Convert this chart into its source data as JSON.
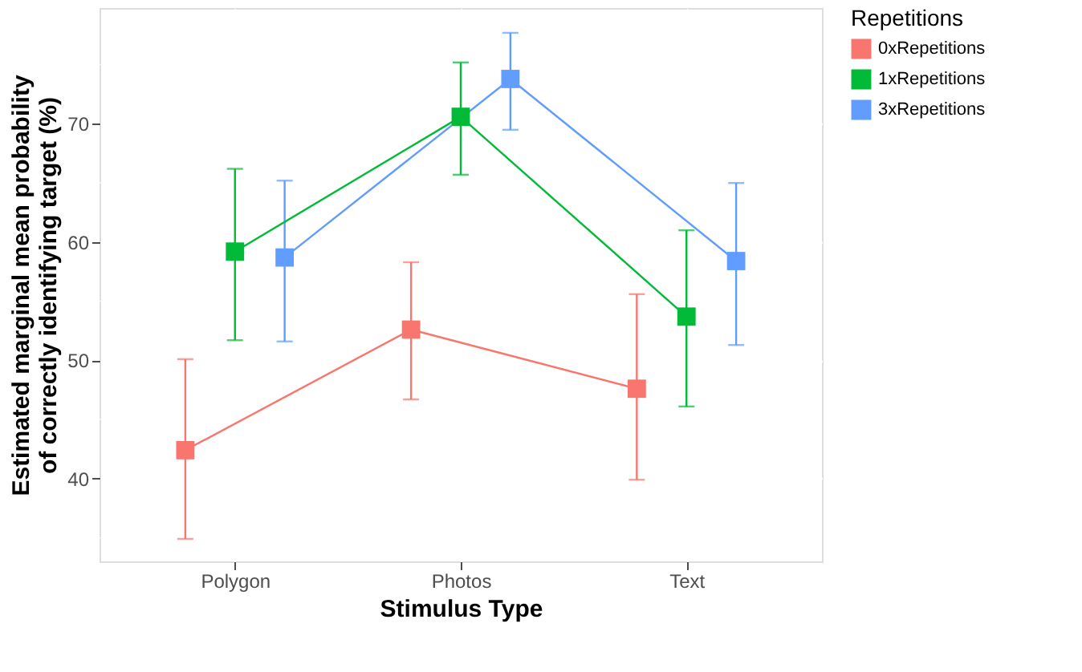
{
  "chart_data": {
    "type": "line",
    "xlabel": "Stimulus Type",
    "ylabel": "Estimated marginal mean probability\nof correctly identifying target (%)",
    "legend_title": "Repetitions",
    "categories": [
      "Polygon",
      "Photos",
      "Text"
    ],
    "series": [
      {
        "name": "0xRepetitions",
        "color": "#f8766d",
        "values": [
          42.4,
          52.6,
          47.6
        ],
        "errors": [
          [
            34.9,
            50.1
          ],
          [
            46.7,
            58.3
          ],
          [
            39.9,
            55.6
          ]
        ]
      },
      {
        "name": "1xRepetitions",
        "color": "#00ba38",
        "values": [
          59.2,
          70.6,
          53.7
        ],
        "errors": [
          [
            51.7,
            66.2
          ],
          [
            65.7,
            75.2
          ],
          [
            46.1,
            61.0
          ]
        ]
      },
      {
        "name": "3xRepetitions",
        "color": "#619cff",
        "values": [
          58.7,
          73.8,
          58.4
        ],
        "errors": [
          [
            51.6,
            65.2
          ],
          [
            69.5,
            77.7
          ],
          [
            51.3,
            65.0
          ]
        ]
      }
    ],
    "ylim": [
      33,
      79.8
    ],
    "yticks": [
      40,
      50,
      60,
      70
    ],
    "grid": true,
    "legend": "right",
    "marker": "square",
    "line_style": "solid"
  }
}
